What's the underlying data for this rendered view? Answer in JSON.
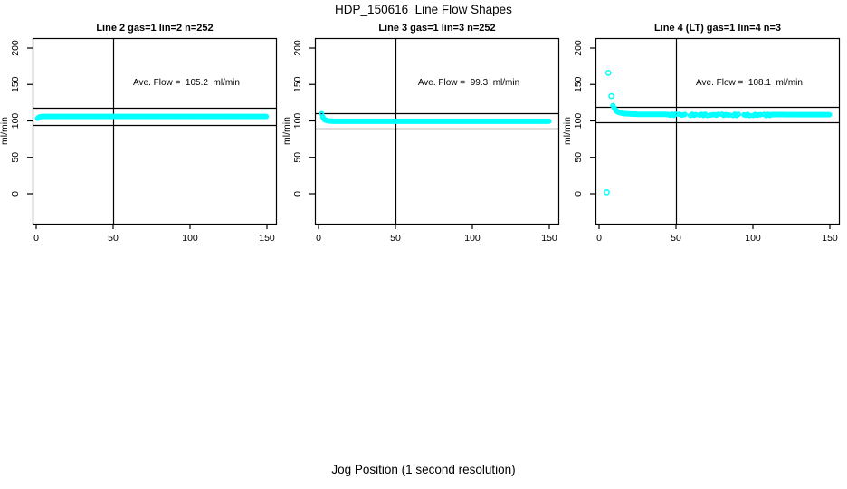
{
  "figure": {
    "title": "HDP_150616  Line Flow Shapes",
    "xlabel": "Jog Position (1 second resolution)",
    "background_color": "#ffffff",
    "axis_color": "#000000",
    "marker_color": "#00FFFF"
  },
  "chart_data": [
    {
      "type": "scatter",
      "title": "Line 2 gas=1 lin=2 n=252",
      "annotation": "Ave. Flow =  105.2  ml/min",
      "ave_flow_ml_min": 105.2,
      "n_points": 252,
      "ylabel": "ml/min",
      "x_ticks": [
        0,
        50,
        100,
        150
      ],
      "y_ticks": [
        0,
        50,
        100,
        150,
        200
      ],
      "xlim": [
        0,
        150
      ],
      "ylim": [
        0,
        200
      ],
      "marker": "open-circle",
      "marker_color": "#00FFFF",
      "vline_x": 50,
      "hlines": [
        118.3,
        94.8
      ],
      "profile": [
        [
          1,
          103.5
        ],
        [
          2,
          105.5
        ],
        [
          4,
          106
        ],
        [
          150,
          106
        ]
      ],
      "outliers": [],
      "band_step": 0.75,
      "sparse": null
    },
    {
      "type": "scatter",
      "title": "Line 3 gas=1 lin=3 n=252",
      "annotation": "Ave. Flow =  99.3  ml/min",
      "ave_flow_ml_min": 99.3,
      "n_points": 252,
      "ylabel": "ml/min",
      "x_ticks": [
        0,
        50,
        100,
        150
      ],
      "y_ticks": [
        0,
        50,
        100,
        150,
        200
      ],
      "xlim": [
        0,
        150
      ],
      "ylim": [
        0,
        200
      ],
      "marker": "open-circle",
      "marker_color": "#00FFFF",
      "vline_x": 50,
      "hlines": [
        110.5,
        88.9
      ],
      "profile": [
        [
          2,
          110
        ],
        [
          3,
          104
        ],
        [
          4,
          101.5
        ],
        [
          6,
          100
        ],
        [
          10,
          99.5
        ],
        [
          150,
          99.5
        ]
      ],
      "outliers": [],
      "band_step": 0.75,
      "sparse": null
    },
    {
      "type": "scatter",
      "title": "Line 4 (LT) gas=1 lin=4 n=3",
      "annotation": "Ave. Flow =  108.1  ml/min",
      "ave_flow_ml_min": 108.1,
      "n_points": 3,
      "ylabel": "ml/min",
      "x_ticks": [
        0,
        50,
        100,
        150
      ],
      "y_ticks": [
        0,
        50,
        100,
        150,
        200
      ],
      "xlim": [
        0,
        150
      ],
      "ylim": [
        0,
        200
      ],
      "marker": "open-circle",
      "marker_color": "#00FFFF",
      "vline_x": 50,
      "hlines": [
        118.8,
        98.0
      ],
      "profile": [
        [
          9,
          121
        ],
        [
          10,
          117
        ],
        [
          11,
          114
        ],
        [
          13,
          111.5
        ],
        [
          16,
          110
        ],
        [
          25,
          109
        ],
        [
          150,
          108.5
        ]
      ],
      "outliers": [
        [
          5,
          2
        ],
        [
          6,
          166
        ],
        [
          8,
          134
        ]
      ],
      "band_step": 0.75,
      "sparse": {
        "from": 45,
        "to": 112
      }
    }
  ]
}
